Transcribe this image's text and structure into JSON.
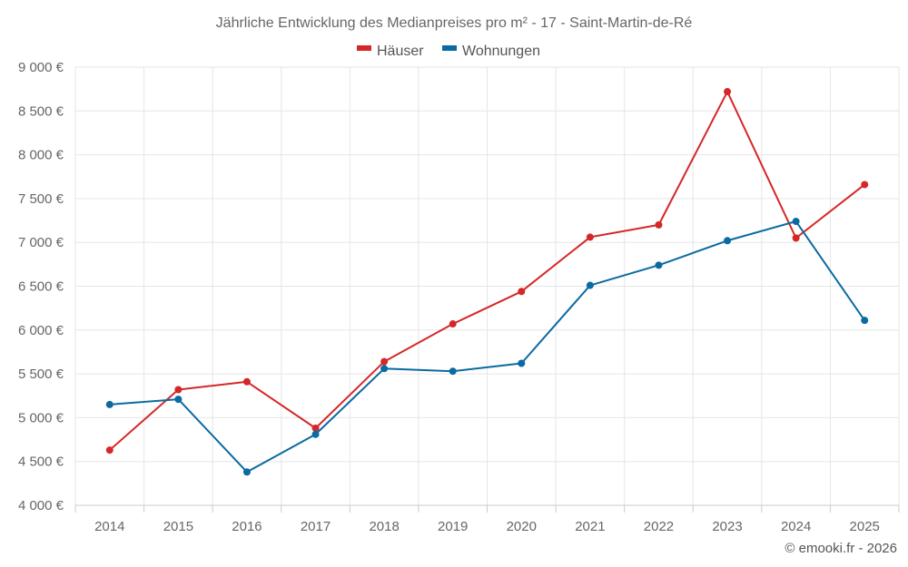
{
  "chart_data": {
    "type": "line",
    "title": "Jährliche Entwicklung des Medianpreises pro m² - 17 - Saint-Martin-de-Ré",
    "categories": [
      "2014",
      "2015",
      "2016",
      "2017",
      "2018",
      "2019",
      "2020",
      "2021",
      "2022",
      "2023",
      "2024",
      "2025"
    ],
    "ylim": [
      4000,
      9000
    ],
    "yticks": [
      4000,
      4500,
      5000,
      5500,
      6000,
      6500,
      7000,
      7500,
      8000,
      8500,
      9000
    ],
    "ytick_labels": [
      "4 000 €",
      "4 500 €",
      "5 000 €",
      "5 500 €",
      "6 000 €",
      "6 500 €",
      "7 000 €",
      "7 500 €",
      "8 000 €",
      "8 500 €",
      "9 000 €"
    ],
    "grid": true,
    "legend_position": "top-center",
    "series": [
      {
        "name": "Häuser",
        "color": "#d62728",
        "values": [
          4630,
          5320,
          5410,
          4880,
          5640,
          6070,
          6440,
          7060,
          7200,
          8720,
          7050,
          7660
        ]
      },
      {
        "name": "Wohnungen",
        "color": "#0a6aa1",
        "values": [
          5150,
          5210,
          4380,
          4810,
          5560,
          5530,
          5620,
          6510,
          6740,
          7020,
          7240,
          6110
        ]
      }
    ]
  },
  "credit": "© emooki.fr - 2026"
}
